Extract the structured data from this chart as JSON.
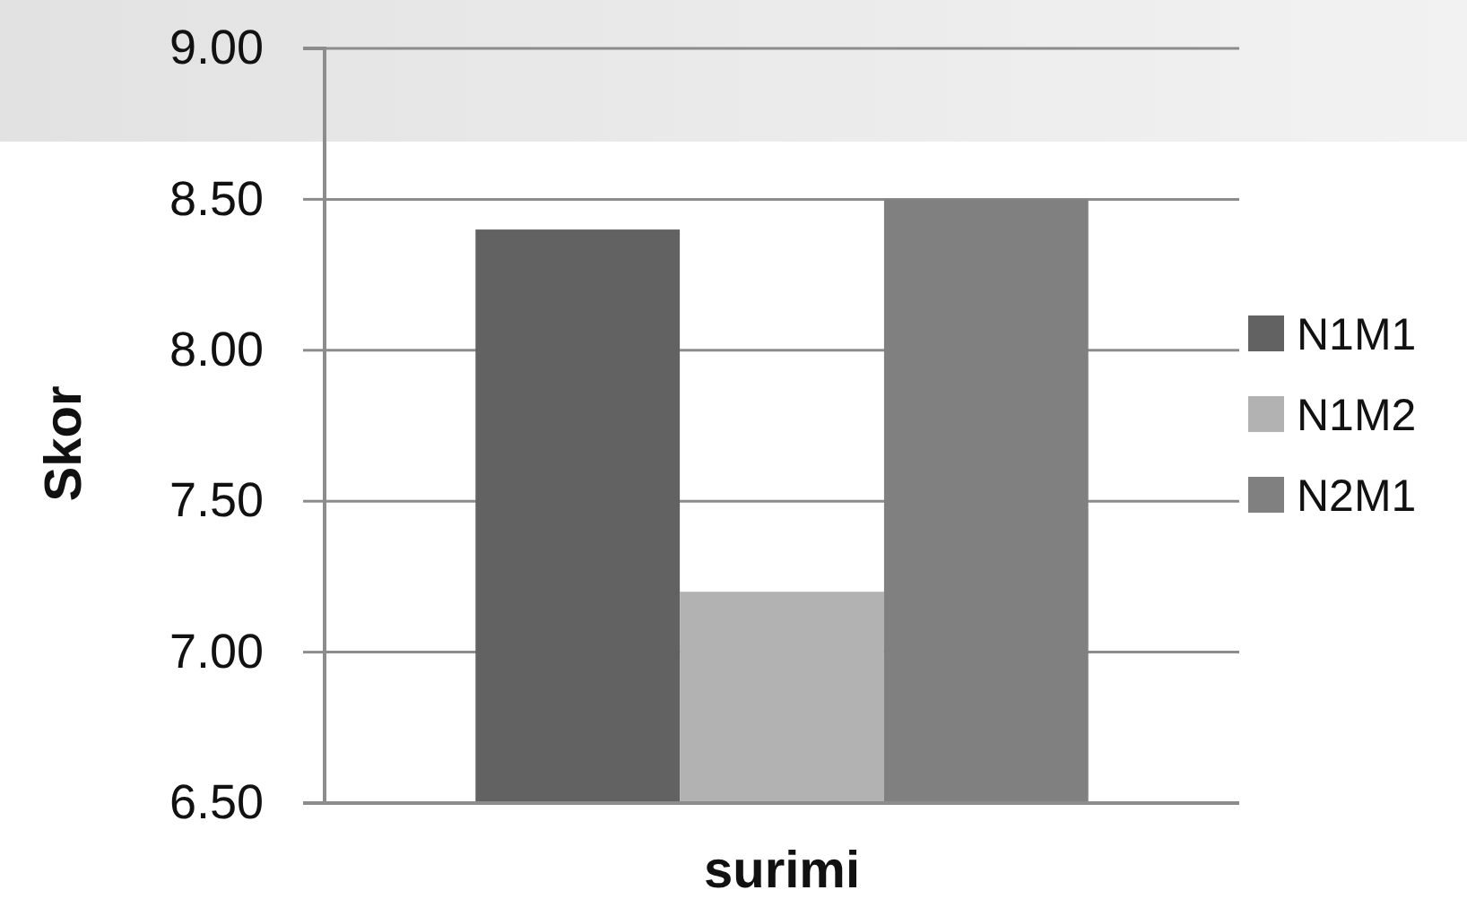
{
  "chart_data": {
    "type": "bar",
    "xlabel": "surimi",
    "ylabel": "Skor",
    "categories": [
      null
    ],
    "series": [
      {
        "name": "N1M1",
        "color": "#626262",
        "values": [
          8.4
        ]
      },
      {
        "name": "N1M2",
        "color": "#b2b2b2",
        "values": [
          7.2
        ]
      },
      {
        "name": "N2M1",
        "color": "#808080",
        "values": [
          8.5
        ]
      }
    ],
    "ylim": [
      6.5,
      9
    ],
    "yticks": [
      {
        "value": 6.5,
        "label": "6.50"
      },
      {
        "value": 7,
        "label": "7.00"
      },
      {
        "value": 7.5,
        "label": "7.50"
      },
      {
        "value": 8,
        "label": "8.00"
      },
      {
        "value": 8.5,
        "label": "8.50"
      },
      {
        "value": 9,
        "label": "9.00"
      }
    ],
    "grid": "y",
    "legend": "right"
  }
}
